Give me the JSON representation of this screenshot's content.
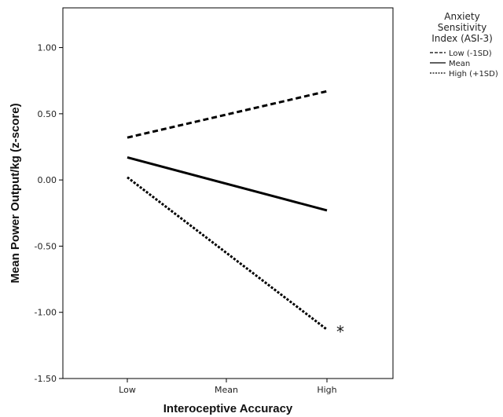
{
  "chart_data": {
    "type": "line",
    "categories": [
      "Low",
      "Mean",
      "High"
    ],
    "series": [
      {
        "name": "Low (-1SD)",
        "style": "dashed",
        "values": [
          0.32,
          null,
          0.67
        ]
      },
      {
        "name": "Mean",
        "style": "solid",
        "values": [
          0.17,
          null,
          -0.23
        ]
      },
      {
        "name": "High (+1SD)",
        "style": "dotted",
        "values": [
          0.02,
          null,
          -1.13
        ]
      }
    ],
    "xlabel": "Interoceptive Accuracy",
    "ylabel": "Mean Power Output/kg (z-score)",
    "ylim": [
      -1.5,
      1.3
    ],
    "yticks": [
      "1.00",
      "0.50",
      "0.00",
      "-0.50",
      "-1.00",
      "-1.50"
    ],
    "ytick_values": [
      1.0,
      0.5,
      0.0,
      -0.5,
      -1.0,
      -1.5
    ],
    "legend": {
      "title_lines": [
        "Anxiety",
        "Sensitivity",
        "Index (ASI-3)"
      ],
      "placement": "outside-right-top"
    },
    "annotations": [
      {
        "text": "*",
        "series": "High (+1SD)",
        "category": "High"
      }
    ],
    "grid": false,
    "line_color": "#000000"
  }
}
